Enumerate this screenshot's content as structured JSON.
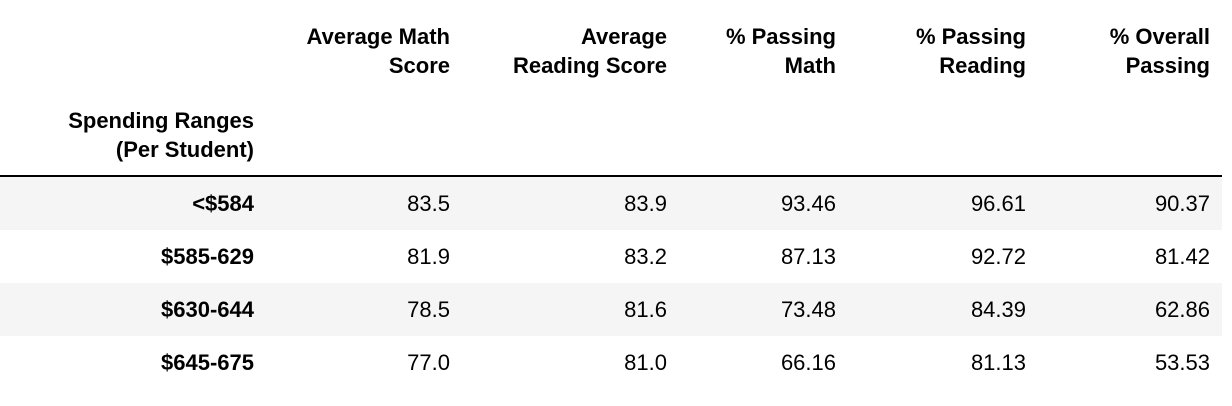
{
  "table": {
    "columns": [
      "Average Math Score",
      "Average Reading Score",
      "% Passing Math",
      "% Passing Reading",
      "% Overall Passing"
    ],
    "column_lines": [
      [
        "Average Math",
        "Score"
      ],
      [
        "Average",
        "Reading Score"
      ],
      [
        "% Passing",
        "Math"
      ],
      [
        "% Passing",
        "Reading"
      ],
      [
        "% Overall",
        "Passing"
      ]
    ],
    "index_name_lines": [
      "Spending Ranges",
      "(Per Student)"
    ],
    "rows": [
      {
        "index": "<$584",
        "values": [
          "83.5",
          "83.9",
          "93.46",
          "96.61",
          "90.37"
        ]
      },
      {
        "index": "$585-629",
        "values": [
          "81.9",
          "83.2",
          "87.13",
          "92.72",
          "81.42"
        ]
      },
      {
        "index": "$630-644",
        "values": [
          "78.5",
          "81.6",
          "73.48",
          "84.39",
          "62.86"
        ]
      },
      {
        "index": "$645-675",
        "values": [
          "77.0",
          "81.0",
          "66.16",
          "81.13",
          "53.53"
        ]
      }
    ],
    "colors": {
      "stripe": "#f5f5f5",
      "header_rule": "#000000",
      "text": "#000000"
    }
  }
}
